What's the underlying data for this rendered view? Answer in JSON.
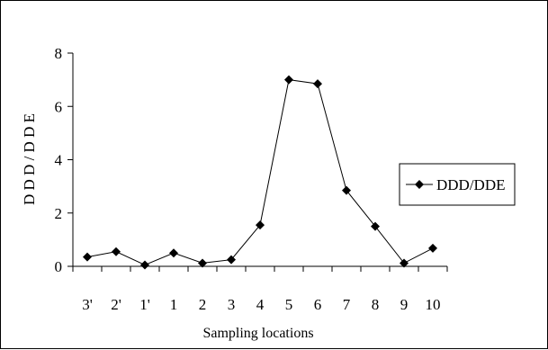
{
  "chart_data": {
    "type": "line",
    "xlabel": "Sampling locations",
    "ylabel": "D D D / D D E",
    "categories": [
      "3'",
      "2'",
      "1'",
      "1",
      "2",
      "3",
      "4",
      "5",
      "6",
      "7",
      "8",
      "9",
      "10"
    ],
    "ylim": [
      0,
      8
    ],
    "yticks": [
      0,
      2,
      4,
      6,
      8
    ],
    "grid": false,
    "legend_position": "right",
    "series": [
      {
        "name": "DDD/DDE",
        "color": "#000000",
        "marker": "diamond",
        "values": [
          0.35,
          0.55,
          0.05,
          0.5,
          0.12,
          0.25,
          1.55,
          7.0,
          6.85,
          2.85,
          1.5,
          0.12,
          0.68
        ]
      }
    ]
  }
}
